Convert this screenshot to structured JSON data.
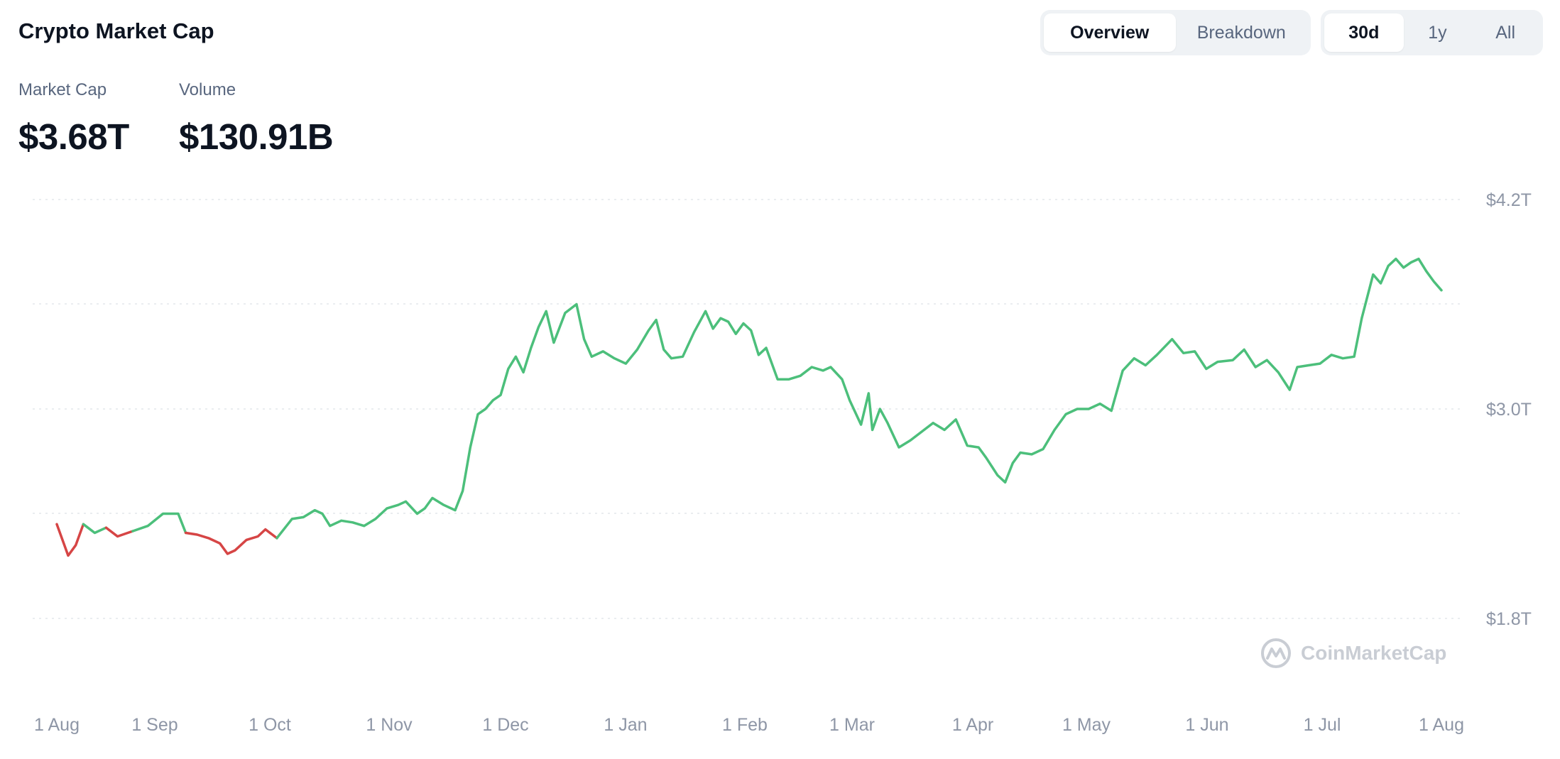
{
  "header": {
    "title": "Crypto Market Cap",
    "view_tabs": [
      {
        "label": "Overview",
        "active": true
      },
      {
        "label": "Breakdown",
        "active": false
      }
    ],
    "range_tabs": [
      {
        "label": "30d",
        "active": true
      },
      {
        "label": "1y",
        "active": false
      },
      {
        "label": "All",
        "active": false
      }
    ]
  },
  "metrics": {
    "market_cap_label": "Market Cap",
    "market_cap_value": "$3.68T",
    "volume_label": "Volume",
    "volume_value": "$130.91B"
  },
  "watermark": {
    "text": "CoinMarketCap",
    "icon": "coinmarketcap-logo-icon"
  },
  "colors": {
    "up": "#4cbf7b",
    "down": "#d64545",
    "grid": "#e4e7eb",
    "tick": "#8e96a6"
  },
  "chart_data": {
    "type": "line",
    "y_unit": "T",
    "y_ticks": [
      "$4.2T",
      "$3.0T",
      "$1.8T"
    ],
    "y_tick_values": [
      4.2,
      3.0,
      1.8
    ],
    "ylim": [
      1.8,
      4.2
    ],
    "x_ticks": [
      "1 Aug",
      "1 Sep",
      "1 Oct",
      "1 Nov",
      "1 Dec",
      "1 Jan",
      "1 Feb",
      "1 Mar",
      "1 Apr",
      "1 May",
      "1 Jun",
      "1 Jul",
      "1 Aug"
    ],
    "grid": true,
    "baseline_value": 2.3,
    "series": [
      {
        "points": [
          [
            "2024-08-01",
            2.34
          ],
          [
            "2024-08-04",
            2.16
          ],
          [
            "2024-08-06",
            2.22
          ],
          [
            "2024-08-08",
            2.34
          ],
          [
            "2024-08-11",
            2.29
          ],
          [
            "2024-08-14",
            2.32
          ],
          [
            "2024-08-17",
            2.27
          ],
          [
            "2024-08-21",
            2.3
          ],
          [
            "2024-08-25",
            2.33
          ],
          [
            "2024-08-29",
            2.4
          ],
          [
            "2024-09-02",
            2.4
          ],
          [
            "2024-09-04",
            2.29
          ],
          [
            "2024-09-07",
            2.28
          ],
          [
            "2024-09-10",
            2.26
          ],
          [
            "2024-09-13",
            2.23
          ],
          [
            "2024-09-15",
            2.17
          ],
          [
            "2024-09-17",
            2.19
          ],
          [
            "2024-09-20",
            2.25
          ],
          [
            "2024-09-23",
            2.27
          ],
          [
            "2024-09-25",
            2.31
          ],
          [
            "2024-09-28",
            2.26
          ],
          [
            "2024-10-02",
            2.37
          ],
          [
            "2024-10-05",
            2.38
          ],
          [
            "2024-10-08",
            2.42
          ],
          [
            "2024-10-10",
            2.4
          ],
          [
            "2024-10-12",
            2.33
          ],
          [
            "2024-10-15",
            2.36
          ],
          [
            "2024-10-18",
            2.35
          ],
          [
            "2024-10-21",
            2.33
          ],
          [
            "2024-10-24",
            2.37
          ],
          [
            "2024-10-27",
            2.43
          ],
          [
            "2024-10-30",
            2.45
          ],
          [
            "2024-11-01",
            2.47
          ],
          [
            "2024-11-04",
            2.4
          ],
          [
            "2024-11-06",
            2.43
          ],
          [
            "2024-11-08",
            2.49
          ],
          [
            "2024-11-11",
            2.45
          ],
          [
            "2024-11-14",
            2.42
          ],
          [
            "2024-11-16",
            2.53
          ],
          [
            "2024-11-18",
            2.78
          ],
          [
            "2024-11-20",
            2.97
          ],
          [
            "2024-11-22",
            3.0
          ],
          [
            "2024-11-24",
            3.05
          ],
          [
            "2024-11-26",
            3.08
          ],
          [
            "2024-11-28",
            3.23
          ],
          [
            "2024-11-30",
            3.3
          ],
          [
            "2024-12-02",
            3.21
          ],
          [
            "2024-12-04",
            3.35
          ],
          [
            "2024-12-06",
            3.47
          ],
          [
            "2024-12-08",
            3.56
          ],
          [
            "2024-12-10",
            3.38
          ],
          [
            "2024-12-13",
            3.55
          ],
          [
            "2024-12-16",
            3.6
          ],
          [
            "2024-12-18",
            3.4
          ],
          [
            "2024-12-20",
            3.3
          ],
          [
            "2024-12-23",
            3.33
          ],
          [
            "2024-12-26",
            3.29
          ],
          [
            "2024-12-29",
            3.26
          ],
          [
            "2025-01-01",
            3.34
          ],
          [
            "2025-01-04",
            3.45
          ],
          [
            "2025-01-06",
            3.51
          ],
          [
            "2025-01-08",
            3.34
          ],
          [
            "2025-01-10",
            3.29
          ],
          [
            "2025-01-13",
            3.3
          ],
          [
            "2025-01-16",
            3.44
          ],
          [
            "2025-01-19",
            3.56
          ],
          [
            "2025-01-21",
            3.46
          ],
          [
            "2025-01-23",
            3.52
          ],
          [
            "2025-01-25",
            3.5
          ],
          [
            "2025-01-27",
            3.43
          ],
          [
            "2025-01-29",
            3.49
          ],
          [
            "2025-01-31",
            3.45
          ],
          [
            "2025-02-02",
            3.31
          ],
          [
            "2025-02-04",
            3.35
          ],
          [
            "2025-02-07",
            3.17
          ],
          [
            "2025-02-10",
            3.17
          ],
          [
            "2025-02-13",
            3.19
          ],
          [
            "2025-02-16",
            3.24
          ],
          [
            "2025-02-19",
            3.22
          ],
          [
            "2025-02-21",
            3.24
          ],
          [
            "2025-02-24",
            3.17
          ],
          [
            "2025-02-26",
            3.05
          ],
          [
            "2025-03-01",
            2.91
          ],
          [
            "2025-03-03",
            3.09
          ],
          [
            "2025-03-04",
            2.88
          ],
          [
            "2025-03-06",
            3.0
          ],
          [
            "2025-03-08",
            2.92
          ],
          [
            "2025-03-11",
            2.78
          ],
          [
            "2025-03-14",
            2.82
          ],
          [
            "2025-03-17",
            2.87
          ],
          [
            "2025-03-20",
            2.92
          ],
          [
            "2025-03-23",
            2.88
          ],
          [
            "2025-03-26",
            2.94
          ],
          [
            "2025-03-29",
            2.79
          ],
          [
            "2025-04-01",
            2.78
          ],
          [
            "2025-04-03",
            2.72
          ],
          [
            "2025-04-06",
            2.62
          ],
          [
            "2025-04-08",
            2.58
          ],
          [
            "2025-04-10",
            2.69
          ],
          [
            "2025-04-12",
            2.75
          ],
          [
            "2025-04-15",
            2.74
          ],
          [
            "2025-04-18",
            2.77
          ],
          [
            "2025-04-21",
            2.88
          ],
          [
            "2025-04-24",
            2.97
          ],
          [
            "2025-04-27",
            3.0
          ],
          [
            "2025-04-30",
            3.0
          ],
          [
            "2025-05-03",
            3.03
          ],
          [
            "2025-05-06",
            2.99
          ],
          [
            "2025-05-09",
            3.22
          ],
          [
            "2025-05-12",
            3.29
          ],
          [
            "2025-05-15",
            3.25
          ],
          [
            "2025-05-18",
            3.31
          ],
          [
            "2025-05-22",
            3.4
          ],
          [
            "2025-05-25",
            3.32
          ],
          [
            "2025-05-28",
            3.33
          ],
          [
            "2025-05-31",
            3.23
          ],
          [
            "2025-06-03",
            3.27
          ],
          [
            "2025-06-07",
            3.28
          ],
          [
            "2025-06-10",
            3.34
          ],
          [
            "2025-06-13",
            3.24
          ],
          [
            "2025-06-16",
            3.28
          ],
          [
            "2025-06-19",
            3.21
          ],
          [
            "2025-06-22",
            3.11
          ],
          [
            "2025-06-24",
            3.24
          ],
          [
            "2025-06-27",
            3.25
          ],
          [
            "2025-06-30",
            3.26
          ],
          [
            "2025-07-03",
            3.31
          ],
          [
            "2025-07-06",
            3.29
          ],
          [
            "2025-07-09",
            3.3
          ],
          [
            "2025-07-11",
            3.52
          ],
          [
            "2025-07-14",
            3.77
          ],
          [
            "2025-07-16",
            3.72
          ],
          [
            "2025-07-18",
            3.82
          ],
          [
            "2025-07-20",
            3.86
          ],
          [
            "2025-07-22",
            3.81
          ],
          [
            "2025-07-24",
            3.84
          ],
          [
            "2025-07-26",
            3.86
          ],
          [
            "2025-07-28",
            3.79
          ],
          [
            "2025-07-30",
            3.73
          ],
          [
            "2025-08-01",
            3.68
          ]
        ]
      }
    ]
  }
}
